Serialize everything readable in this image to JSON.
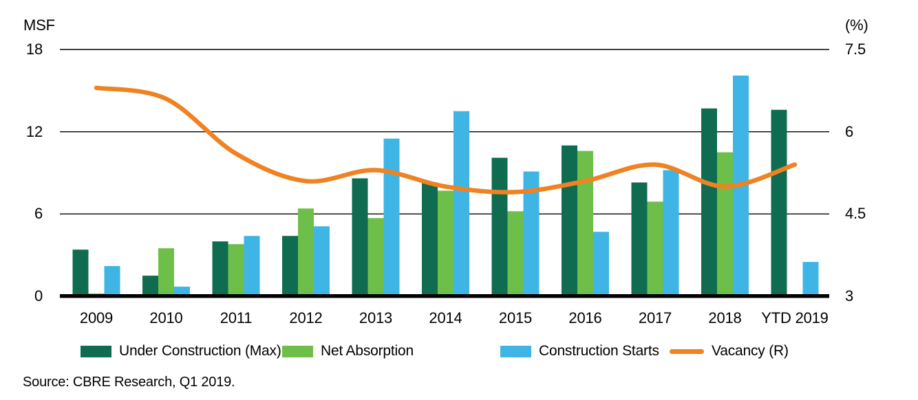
{
  "source": "Source: CBRE Research, Q1 2019.",
  "chart_data": {
    "type": "bar+line combo",
    "categories": [
      "2009",
      "2010",
      "2011",
      "2012",
      "2013",
      "2014",
      "2015",
      "2016",
      "2017",
      "2018",
      "YTD 2019"
    ],
    "left_axis": {
      "label": "MSF",
      "ticks": [
        18,
        12,
        6,
        0
      ],
      "range": [
        0,
        18
      ]
    },
    "right_axis": {
      "label": "(%)",
      "ticks": [
        7.5,
        6,
        4.5,
        3
      ],
      "range": [
        3,
        7.5
      ]
    },
    "grid": "horizontal-black-lines",
    "legend_position": "bottom",
    "series": [
      {
        "name": "Under Construction (Max)",
        "type": "bar",
        "axis": "left",
        "color": "#0F6C51",
        "values": [
          3.4,
          1.5,
          4.0,
          4.4,
          8.6,
          8.3,
          10.1,
          11.0,
          8.3,
          13.7,
          13.6
        ]
      },
      {
        "name": "Net Absorption",
        "type": "bar",
        "axis": "left",
        "color": "#6EBE4A",
        "values": [
          0.2,
          3.5,
          3.8,
          6.4,
          5.7,
          7.7,
          6.2,
          10.6,
          6.9,
          10.5,
          0
        ]
      },
      {
        "name": "Construction Starts",
        "type": "bar",
        "axis": "left",
        "color": "#3EB5E5",
        "values": [
          2.2,
          0.7,
          4.4,
          5.1,
          11.5,
          13.5,
          9.1,
          4.7,
          9.2,
          16.1,
          2.5
        ]
      },
      {
        "name": "Vacancy (R)",
        "type": "line",
        "axis": "right",
        "color": "#EF8222",
        "values": [
          6.8,
          6.6,
          5.6,
          5.1,
          5.3,
          5.0,
          4.9,
          5.1,
          5.4,
          5.0,
          5.4
        ]
      }
    ]
  }
}
